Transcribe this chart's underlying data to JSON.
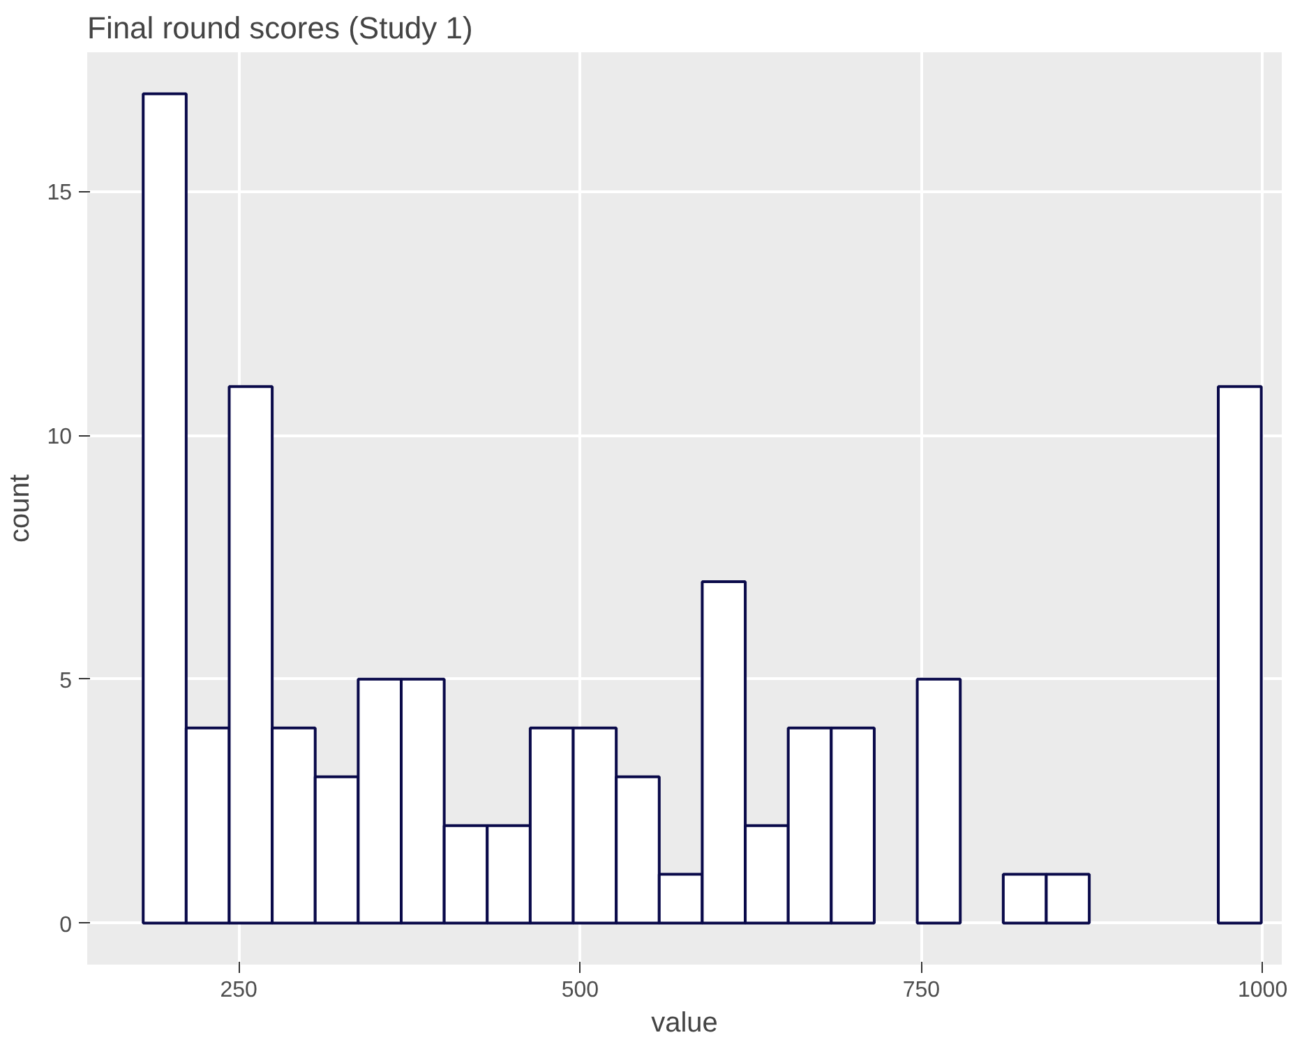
{
  "chart_data": {
    "type": "histogram",
    "title": "Final round scores (Study 1)",
    "xlabel": "value",
    "ylabel": "count",
    "bins": [
      180,
      211.5,
      243,
      274.5,
      306,
      337.5,
      369,
      400.5,
      432,
      463.5,
      495,
      526.5,
      558,
      589.5,
      621,
      652.5,
      684,
      715.5,
      747,
      778.5,
      810,
      841.5,
      873,
      904.5,
      936,
      967.5,
      999
    ],
    "values": [
      17,
      4,
      11,
      4,
      3,
      5,
      5,
      2,
      2,
      4,
      4,
      3,
      1,
      7,
      2,
      4,
      4,
      0,
      5,
      0,
      1,
      1,
      0,
      0,
      0,
      11
    ],
    "color": "#ffffff",
    "xlim": [
      139,
      1014
    ],
    "ylim": [
      -0.85,
      17.85
    ],
    "xticks": [
      250,
      500,
      750,
      1000
    ],
    "yticks": [
      0,
      5,
      10,
      15
    ],
    "grid": true
  }
}
